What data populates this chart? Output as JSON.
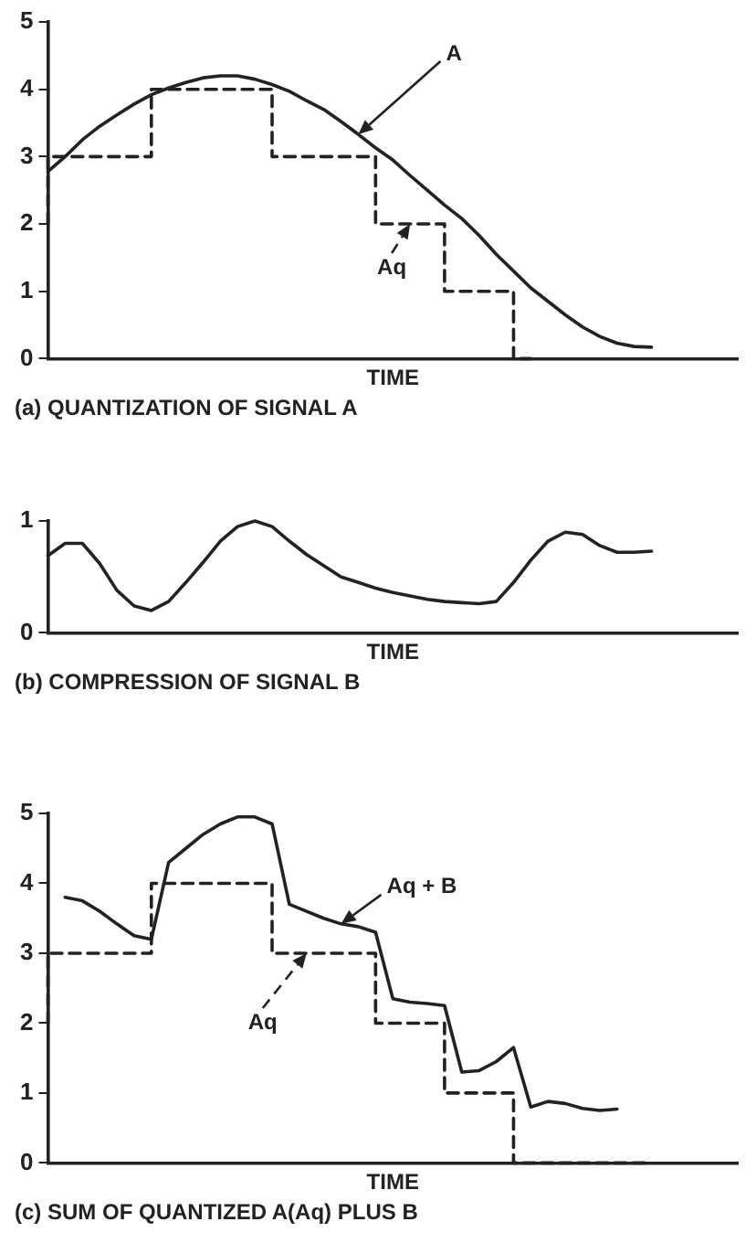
{
  "chart_data": [
    {
      "type": "line",
      "title": "(a) QUANTIZATION OF SIGNAL A",
      "xlabel": "TIME",
      "categories": [
        null,
        null,
        null,
        null,
        null,
        null,
        null,
        null,
        null,
        null,
        null,
        null,
        null,
        null,
        null,
        null,
        null,
        null,
        null,
        null,
        null,
        null,
        null,
        null,
        null,
        null,
        null,
        null,
        null,
        null,
        null,
        null,
        null,
        null,
        null,
        null,
        null,
        null,
        null,
        null,
        null
      ],
      "ylim": [
        0,
        5
      ],
      "yticks": [
        0,
        1,
        2,
        3,
        4,
        5
      ],
      "tick_labels": "y",
      "grid": false,
      "marker": "none",
      "series": [
        {
          "name": "A",
          "color": "#222222",
          "line_style": "solid",
          "values": [
            2.78,
            3.0,
            3.25,
            3.45,
            3.62,
            3.78,
            3.92,
            4.02,
            4.1,
            4.17,
            4.2,
            4.2,
            4.15,
            4.07,
            3.97,
            3.83,
            3.7,
            3.52,
            3.33,
            3.13,
            2.95,
            2.72,
            2.5,
            2.28,
            2.08,
            1.83,
            1.55,
            1.3,
            1.05,
            0.85,
            0.65,
            0.47,
            0.33,
            0.23,
            0.18,
            0.17,
            null,
            null,
            null,
            null,
            null
          ]
        },
        {
          "name": "Aq",
          "type": "step",
          "color": "#222222",
          "line_style": "dashed",
          "values": [
            2,
            3,
            3,
            3,
            3,
            3,
            3,
            4,
            4,
            4,
            4,
            4,
            4,
            4,
            3,
            3,
            3,
            3,
            3,
            3,
            2,
            2,
            2,
            2,
            1,
            1,
            1,
            1,
            0,
            null,
            null,
            null,
            null,
            null,
            null,
            null,
            null,
            null,
            null,
            null,
            null
          ]
        }
      ]
    },
    {
      "type": "line",
      "title": "(b) COMPRESSION OF SIGNAL B",
      "xlabel": "TIME",
      "categories": [
        null,
        null,
        null,
        null,
        null,
        null,
        null,
        null,
        null,
        null,
        null,
        null,
        null,
        null,
        null,
        null,
        null,
        null,
        null,
        null,
        null,
        null,
        null,
        null,
        null,
        null,
        null,
        null,
        null,
        null,
        null,
        null,
        null,
        null,
        null,
        null,
        null,
        null,
        null,
        null,
        null
      ],
      "ylim": [
        0,
        1
      ],
      "yticks": [
        0,
        1
      ],
      "tick_labels": "y",
      "grid": false,
      "marker": "none",
      "series": [
        {
          "color": "#222222",
          "line_style": "solid",
          "values": [
            0.69,
            0.8,
            0.8,
            0.62,
            0.38,
            0.24,
            0.2,
            0.28,
            0.45,
            0.63,
            0.82,
            0.95,
            1.0,
            0.95,
            0.82,
            0.7,
            0.6,
            0.5,
            0.45,
            0.4,
            0.36,
            0.33,
            0.3,
            0.28,
            0.27,
            0.26,
            0.28,
            0.45,
            0.65,
            0.82,
            0.9,
            0.88,
            0.78,
            0.72,
            0.72,
            0.73,
            null,
            null,
            null,
            null,
            null
          ]
        }
      ]
    },
    {
      "type": "line",
      "title": "(c) SUM OF QUANTIZED A(Aq) PLUS B",
      "xlabel": "TIME",
      "categories": [
        null,
        null,
        null,
        null,
        null,
        null,
        null,
        null,
        null,
        null,
        null,
        null,
        null,
        null,
        null,
        null,
        null,
        null,
        null,
        null,
        null,
        null,
        null,
        null,
        null,
        null,
        null,
        null,
        null,
        null,
        null,
        null,
        null,
        null,
        null,
        null,
        null,
        null,
        null,
        null,
        null
      ],
      "ylim": [
        0,
        5
      ],
      "yticks": [
        0,
        1,
        2,
        3,
        4,
        5
      ],
      "tick_labels": "y",
      "grid": false,
      "marker": "none",
      "series": [
        {
          "name": "Aq + B",
          "color": "#222222",
          "line_style": "solid",
          "values": [
            null,
            3.8,
            3.75,
            3.6,
            3.42,
            3.25,
            3.2,
            4.3,
            4.5,
            4.7,
            4.85,
            4.95,
            4.95,
            4.85,
            3.7,
            3.6,
            3.5,
            3.42,
            3.38,
            3.3,
            2.35,
            2.3,
            2.28,
            2.25,
            1.3,
            1.32,
            1.45,
            1.65,
            0.8,
            0.88,
            0.85,
            0.78,
            0.75,
            0.77,
            null,
            null,
            null,
            null,
            null,
            null,
            null
          ]
        },
        {
          "name": "Aq",
          "type": "step",
          "color": "#222222",
          "line_style": "dashed",
          "values": [
            2,
            3,
            3,
            3,
            3,
            3,
            3,
            4,
            4,
            4,
            4,
            4,
            4,
            4,
            3,
            3,
            3,
            3,
            3,
            3,
            2,
            2,
            2,
            2,
            1,
            1,
            1,
            1,
            0,
            0,
            0,
            0,
            0,
            0,
            0,
            0,
            null,
            null,
            null,
            null,
            null
          ]
        }
      ]
    }
  ]
}
